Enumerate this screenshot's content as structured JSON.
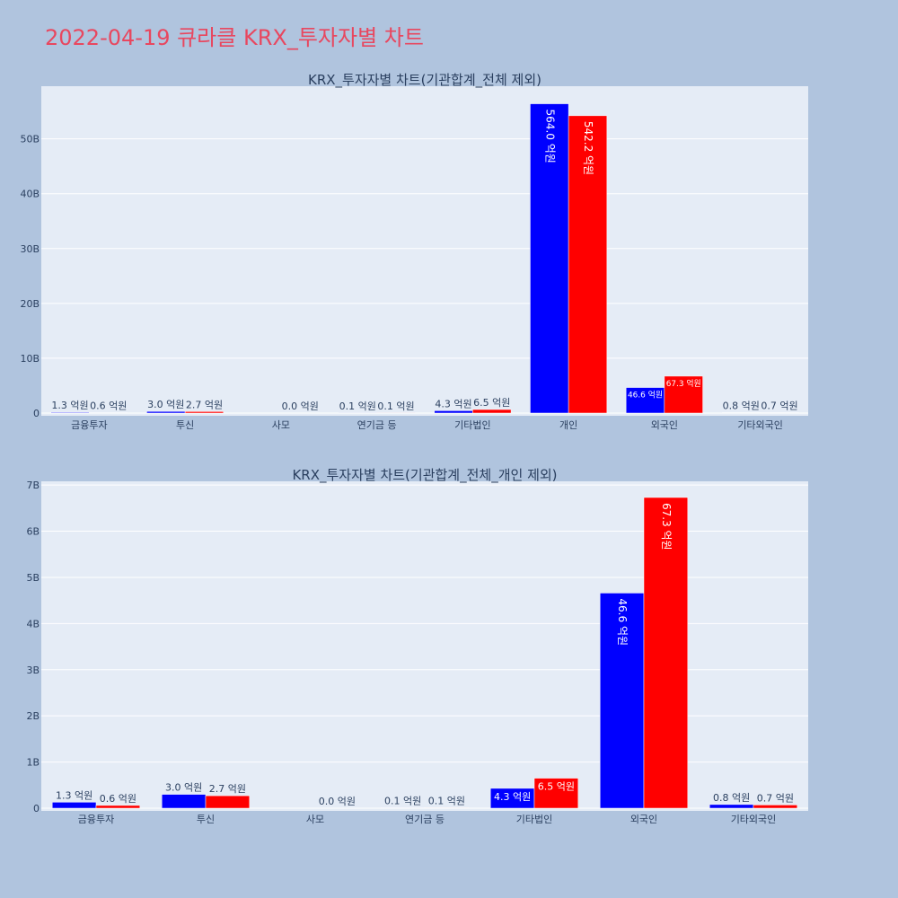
{
  "page": {
    "title": "2022-04-19 큐라클 KRX_투자자별 차트",
    "background": "#b0c4de",
    "title_color": "#e8475f",
    "plot_background": "#e5ecf6",
    "buy_color": "#0000ff",
    "sell_color": "#ff0000"
  },
  "chart_data": [
    {
      "type": "bar",
      "title": "KRX_투자자별 차트(기관합계_전체 제외)",
      "categories": [
        "금융투자",
        "투신",
        "사모",
        "연기금 등",
        "기타법인",
        "개인",
        "외국인",
        "기타외국인"
      ],
      "series": [
        {
          "color": "#0000ff",
          "values": [
            130000000,
            300000000,
            0,
            10000000,
            430000000,
            56400000000,
            4660000000,
            80000000
          ],
          "labels": [
            "1.3 억원",
            "3.0 억원",
            "",
            "0.1 억원",
            "4.3 억원",
            "564.0 억원",
            "46.6 억원",
            "0.8 억원"
          ]
        },
        {
          "color": "#ff0000",
          "values": [
            60000000,
            270000000,
            0,
            10000000,
            650000000,
            54220000000,
            6730000000,
            70000000
          ],
          "labels": [
            "0.6 억원",
            "2.7 억원",
            "0.0 억원",
            "0.1 억원",
            "6.5 억원",
            "542.2 억원",
            "67.3 억원",
            "0.7 억원"
          ]
        }
      ],
      "yticks": [
        0,
        10000000000,
        20000000000,
        30000000000,
        40000000000,
        50000000000
      ],
      "ytick_labels": [
        "0",
        "10B",
        "20B",
        "30B",
        "40B",
        "50B"
      ],
      "ylim": [
        0,
        59600000000
      ],
      "grid": true,
      "legend": "none"
    },
    {
      "type": "bar",
      "title": "KRX_투자자별 차트(기관합계_전체_개인 제외)",
      "categories": [
        "금융투자",
        "투신",
        "사모",
        "연기금 등",
        "기타법인",
        "외국인",
        "기타외국인"
      ],
      "series": [
        {
          "color": "#0000ff",
          "values": [
            130000000,
            300000000,
            0,
            10000000,
            430000000,
            4660000000,
            80000000
          ],
          "labels": [
            "1.3 억원",
            "3.0 억원",
            "",
            "0.1 억원",
            "4.3 억원",
            "46.6 억원",
            "0.8 억원"
          ]
        },
        {
          "color": "#ff0000",
          "values": [
            60000000,
            270000000,
            0,
            10000000,
            650000000,
            6730000000,
            70000000
          ],
          "labels": [
            "0.6 억원",
            "2.7 억원",
            "0.0 억원",
            "0.1 억원",
            "6.5 억원",
            "67.3 억원",
            "0.7 억원"
          ]
        }
      ],
      "yticks": [
        0,
        1000000000,
        2000000000,
        3000000000,
        4000000000,
        5000000000,
        6000000000,
        7000000000
      ],
      "ytick_labels": [
        "0",
        "1B",
        "2B",
        "3B",
        "4B",
        "5B",
        "6B",
        "7B"
      ],
      "ylim": [
        0,
        7080000000
      ],
      "grid": true,
      "legend": "none"
    }
  ]
}
